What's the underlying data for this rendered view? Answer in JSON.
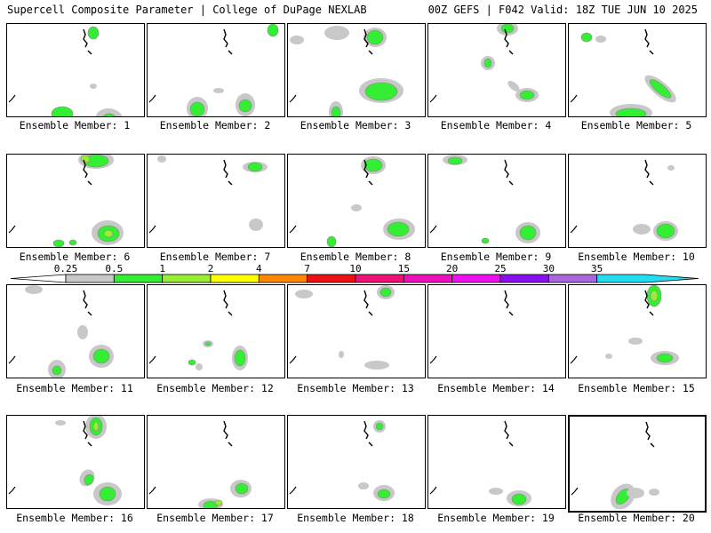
{
  "header": {
    "left": "Supercell Composite Parameter | College of DuPage NEXLAB",
    "right": "00Z GEFS | F042 Valid: 18Z TUE JUN 10 2025"
  },
  "members": [
    {
      "caption": "Ensemble Member: 1"
    },
    {
      "caption": "Ensemble Member: 2"
    },
    {
      "caption": "Ensemble Member: 3"
    },
    {
      "caption": "Ensemble Member: 4"
    },
    {
      "caption": "Ensemble Member: 5"
    },
    {
      "caption": "Ensemble Member: 6"
    },
    {
      "caption": "Ensemble Member: 7"
    },
    {
      "caption": "Ensemble Member: 8"
    },
    {
      "caption": "Ensemble Member: 9"
    },
    {
      "caption": "Ensemble Member: 10"
    },
    {
      "caption": "Ensemble Member: 11"
    },
    {
      "caption": "Ensemble Member: 12"
    },
    {
      "caption": "Ensemble Member: 13"
    },
    {
      "caption": "Ensemble Member: 14"
    },
    {
      "caption": "Ensemble Member: 15"
    },
    {
      "caption": "Ensemble Member: 16"
    },
    {
      "caption": "Ensemble Member: 17"
    },
    {
      "caption": "Ensemble Member: 18"
    },
    {
      "caption": "Ensemble Member: 19"
    },
    {
      "caption": "Ensemble Member: 20"
    }
  ],
  "colorbar": {
    "labels": [
      "0.25",
      "0.5",
      "1",
      "2",
      "4",
      "7",
      "10",
      "15",
      "20",
      "25",
      "30",
      "35"
    ],
    "colors": [
      "#c8c8c8",
      "#33ee33",
      "#99ee33",
      "#ffff00",
      "#ff8800",
      "#ee1111",
      "#ee1177",
      "#ee11bb",
      "#ee11ee",
      "#8811ee",
      "#aa66dd",
      "#22ddee"
    ]
  },
  "selected_member": 20
}
